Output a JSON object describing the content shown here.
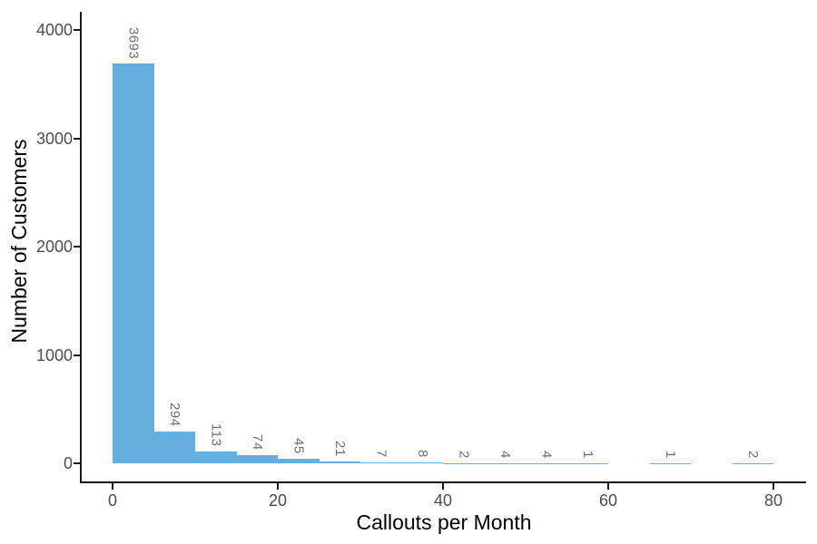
{
  "chart_data": {
    "type": "bar",
    "subtype": "histogram",
    "title": "",
    "xlabel": "Callouts per Month",
    "ylabel": "Number of Customers",
    "bin_width": 5,
    "bins": [
      {
        "start": 0,
        "end": 5,
        "count": 3693
      },
      {
        "start": 5,
        "end": 10,
        "count": 294
      },
      {
        "start": 10,
        "end": 15,
        "count": 113
      },
      {
        "start": 15,
        "end": 20,
        "count": 74
      },
      {
        "start": 20,
        "end": 25,
        "count": 45
      },
      {
        "start": 25,
        "end": 30,
        "count": 21
      },
      {
        "start": 30,
        "end": 35,
        "count": 7
      },
      {
        "start": 35,
        "end": 40,
        "count": 8
      },
      {
        "start": 40,
        "end": 45,
        "count": 2
      },
      {
        "start": 45,
        "end": 50,
        "count": 4
      },
      {
        "start": 50,
        "end": 55,
        "count": 4
      },
      {
        "start": 55,
        "end": 60,
        "count": 1
      },
      {
        "start": 60,
        "end": 65,
        "count": 0
      },
      {
        "start": 65,
        "end": 70,
        "count": 1
      },
      {
        "start": 70,
        "end": 75,
        "count": 0
      },
      {
        "start": 75,
        "end": 80,
        "count": 2
      }
    ],
    "x_ticks": [
      0,
      20,
      40,
      60,
      80
    ],
    "y_ticks": [
      0,
      1000,
      2000,
      3000,
      4000
    ],
    "xlim": [
      -4,
      84
    ],
    "ylim": [
      0,
      4000
    ],
    "grid": false,
    "legend": false,
    "bar_labels": "count shown above each nonzero bin, rotated 90deg clockwise",
    "colors": {
      "bar_fill": "#65AFDF",
      "bar_label_text": "#6F6F6F",
      "axis_text": "#4D4D4D",
      "axis_title_text": "#000000",
      "axis_line": "#1A1A1A",
      "background": "#FFFFFF"
    }
  }
}
